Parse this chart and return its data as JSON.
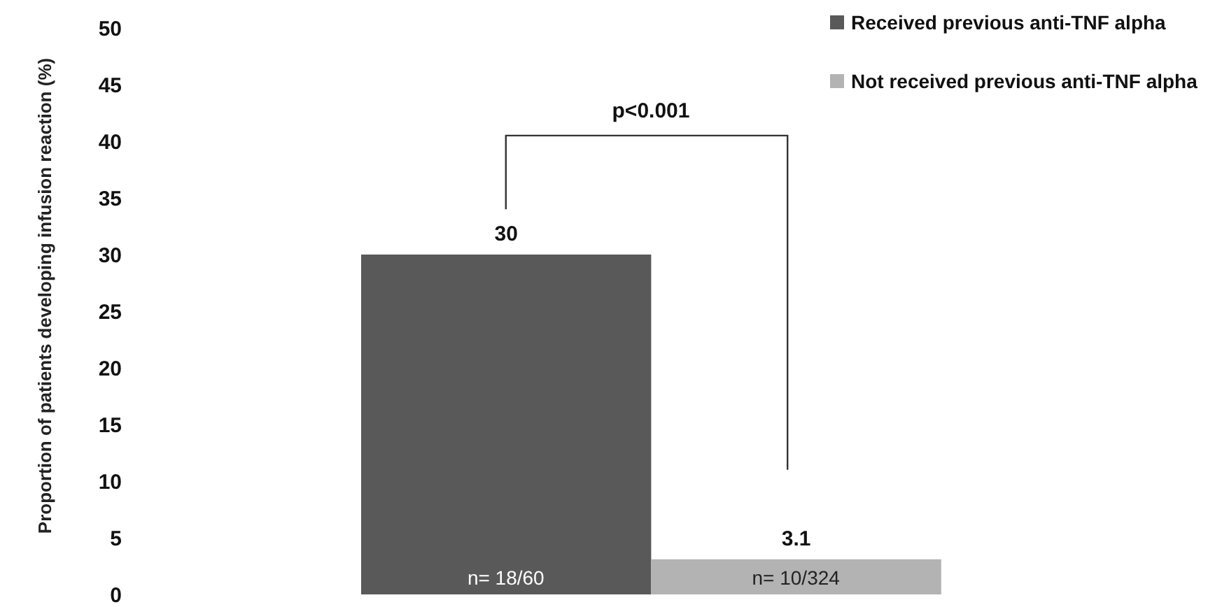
{
  "chart_data": {
    "type": "bar",
    "ylabel": "Proportion of patients developing infusion reaction (%)",
    "categories": [
      null
    ],
    "series": [
      {
        "name": "Received previous anti-TNF alpha",
        "color": "#595959",
        "values": [
          30
        ]
      },
      {
        "name": "Not received previous anti-TNF alpha",
        "color": "#b3b3b3",
        "values": [
          3.1
        ]
      }
    ],
    "ylim": [
      0,
      50
    ],
    "yticks": [
      0,
      5,
      10,
      15,
      20,
      25,
      30,
      35,
      40,
      45,
      50
    ],
    "data_labels": true,
    "legend": "top right",
    "grid": false,
    "annotations": [
      "p<0.001",
      "n= 18/60",
      "n= 10/324"
    ]
  }
}
